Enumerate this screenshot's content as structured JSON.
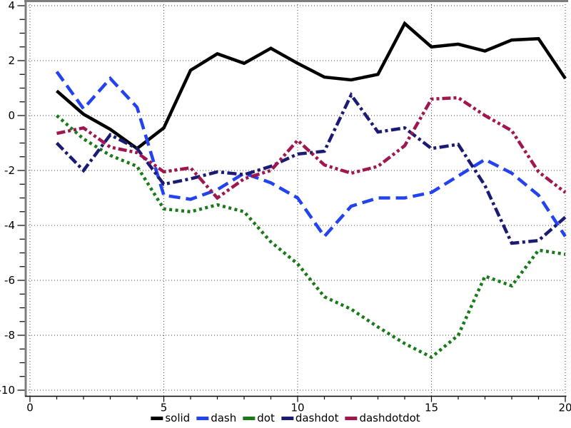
{
  "chart_data": {
    "type": "line",
    "title": "",
    "xlabel": "",
    "ylabel": "",
    "xlim": [
      0,
      20
    ],
    "ylim": [
      -10,
      4
    ],
    "x_major_ticks": [
      0,
      5,
      10,
      15,
      20
    ],
    "y_major_ticks": [
      4,
      2,
      0,
      -2,
      -4,
      -6,
      -8,
      -10
    ],
    "x_minor_step": 1,
    "y_minor_step": 0.5,
    "grid": true,
    "grid_style": "dotted",
    "legend_position": "bottom-center",
    "x": [
      1,
      2,
      3,
      4,
      5,
      6,
      7,
      8,
      9,
      10,
      11,
      12,
      13,
      14,
      15,
      16,
      17,
      18,
      19,
      20
    ],
    "series": [
      {
        "name": "solid",
        "style": "solid",
        "color": "#000000",
        "values": [
          0.9,
          0.05,
          -0.5,
          -1.2,
          -0.45,
          1.65,
          2.25,
          1.9,
          2.45,
          1.9,
          1.4,
          1.3,
          1.5,
          3.35,
          2.5,
          2.6,
          2.35,
          2.75,
          2.8,
          1.35
        ]
      },
      {
        "name": "dash",
        "style": "dash",
        "color": "#2342f0",
        "values": [
          1.6,
          0.25,
          1.35,
          0.3,
          -2.9,
          -3.05,
          -2.7,
          -2.1,
          -2.45,
          -3.0,
          -4.4,
          -3.3,
          -3.0,
          -3.0,
          -2.8,
          -2.2,
          -1.6,
          -2.1,
          -2.9,
          -4.4
        ]
      },
      {
        "name": "dot",
        "style": "dot",
        "color": "#1a7a1a",
        "values": [
          0.0,
          -0.85,
          -1.45,
          -1.85,
          -3.4,
          -3.5,
          -3.25,
          -3.5,
          -4.6,
          -5.4,
          -6.6,
          -7.05,
          -7.7,
          -8.3,
          -8.8,
          -8.0,
          -5.85,
          -6.2,
          -4.9,
          -5.05
        ]
      },
      {
        "name": "dashdot",
        "style": "dashdot",
        "color": "#1b1b74",
        "values": [
          -1.0,
          -2.0,
          -0.7,
          -1.2,
          -2.5,
          -2.3,
          -2.05,
          -2.15,
          -1.85,
          -1.4,
          -1.3,
          0.75,
          -0.6,
          -0.45,
          -1.2,
          -1.05,
          -2.55,
          -4.65,
          -4.55,
          -3.7
        ]
      },
      {
        "name": "dashdotdot",
        "style": "dashdotdot",
        "color": "#a0164f",
        "values": [
          -0.65,
          -0.45,
          -1.15,
          -1.35,
          -2.05,
          -1.9,
          -3.0,
          -2.3,
          -2.0,
          -0.9,
          -1.8,
          -2.1,
          -1.85,
          -1.1,
          0.6,
          0.65,
          0.0,
          -0.55,
          -2.05,
          -2.8
        ]
      }
    ],
    "axis_colors": {
      "grid": "#3c3c3c",
      "axis": "#000000",
      "spine": "#7d7d7d"
    }
  },
  "legend": {
    "items": [
      {
        "label": "solid"
      },
      {
        "label": "dash"
      },
      {
        "label": "dot"
      },
      {
        "label": "dashdot"
      },
      {
        "label": "dashdotdot"
      }
    ]
  }
}
